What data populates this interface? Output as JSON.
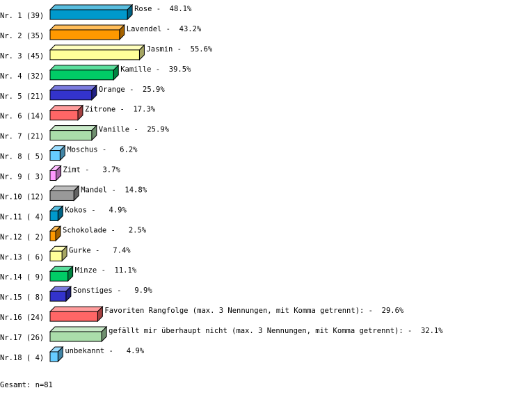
{
  "chart_data": {
    "type": "bar",
    "orientation": "horizontal",
    "style": "3d",
    "grid": false,
    "unit": "%",
    "rows": [
      {
        "label": "Nr. 1",
        "count": 39,
        "name": "Rose",
        "value": 48.1,
        "color": "#0099cc"
      },
      {
        "label": "Nr. 2",
        "count": 35,
        "name": "Lavendel",
        "value": 43.2,
        "color": "#ff9900"
      },
      {
        "label": "Nr. 3",
        "count": 45,
        "name": "Jasmin",
        "value": 55.6,
        "color": "#ffff99"
      },
      {
        "label": "Nr. 4",
        "count": 32,
        "name": "Kamille",
        "value": 39.5,
        "color": "#00cc66"
      },
      {
        "label": "Nr. 5",
        "count": 21,
        "name": "Orange",
        "value": 25.9,
        "color": "#3333cc"
      },
      {
        "label": "Nr. 6",
        "count": 14,
        "name": "Zitrone",
        "value": 17.3,
        "color": "#ff6666"
      },
      {
        "label": "Nr. 7",
        "count": 21,
        "name": "Vanille",
        "value": 25.9,
        "color": "#aaddaa"
      },
      {
        "label": "Nr. 8",
        "count": 5,
        "name": "Moschus",
        "value": 6.2,
        "color": "#66ccff"
      },
      {
        "label": "Nr. 9",
        "count": 3,
        "name": "Zimt",
        "value": 3.7,
        "color": "#ff99ff"
      },
      {
        "label": "Nr.10",
        "count": 12,
        "name": "Mandel",
        "value": 14.8,
        "color": "#999999"
      },
      {
        "label": "Nr.11",
        "count": 4,
        "name": "Kokos",
        "value": 4.9,
        "color": "#0099cc"
      },
      {
        "label": "Nr.12",
        "count": 2,
        "name": "Schokolade",
        "value": 2.5,
        "color": "#ff9900"
      },
      {
        "label": "Nr.13",
        "count": 6,
        "name": "Gurke",
        "value": 7.4,
        "color": "#ffff99"
      },
      {
        "label": "Nr.14",
        "count": 9,
        "name": "Minze",
        "value": 11.1,
        "color": "#00cc66"
      },
      {
        "label": "Nr.15",
        "count": 8,
        "name": "Sonstiges",
        "value": 9.9,
        "color": "#3333cc"
      },
      {
        "label": "Nr.16",
        "count": 24,
        "name": "Favoriten Rangfolge (max. 3 Nennungen, mit Komma getrennt):",
        "value": 29.6,
        "color": "#ff6666"
      },
      {
        "label": "Nr.17",
        "count": 26,
        "name": "gefällt mir überhaupt nicht (max. 3 Nennungen, mit Komma getrennt):",
        "value": 32.1,
        "color": "#aaddaa"
      },
      {
        "label": "Nr.18",
        "count": 4,
        "name": "unbekannt",
        "value": 4.9,
        "color": "#66ccff"
      }
    ]
  },
  "footer": {
    "total": "Gesamt: n=81"
  }
}
